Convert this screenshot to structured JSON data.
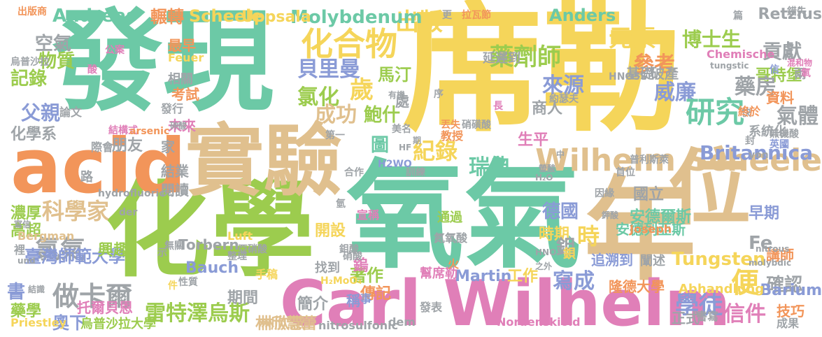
{
  "words": [
    {
      "text": "席勒",
      "color": "#f5d55a"
    },
    {
      "text": "氧氣",
      "color": "#6cc9a6"
    },
    {
      "text": "發現",
      "color": "#6cc9a6"
    },
    {
      "text": "化學",
      "color": "#9ccc4e"
    },
    {
      "text": "年",
      "color": "#e0c08e"
    },
    {
      "text": "實驗",
      "color": "#e0c08e"
    },
    {
      "text": "acid",
      "color": "#f2955a"
    },
    {
      "text": "Carl Wilhelm",
      "color": "#e07fb8"
    },
    {
      "text": "位",
      "color": "#e0c08e"
    },
    {
      "text": "Wilhelm Scheele",
      "color": "#e0c08e"
    },
    {
      "text": "化合物",
      "color": "#f5d55a"
    },
    {
      "text": "藥劑師",
      "color": "#9ccc4e"
    },
    {
      "text": "出版",
      "color": "#f5d55a"
    },
    {
      "text": "元素",
      "color": "#f5d55a"
    },
    {
      "text": "博士生",
      "color": "#9ccc4e"
    },
    {
      "text": "貢獻",
      "color": "#9fa4a8"
    },
    {
      "text": "空氣",
      "color": "#9fa4a8"
    },
    {
      "text": "物質",
      "color": "#9ccc4e"
    },
    {
      "text": "記錄",
      "color": "#9ccc4e"
    },
    {
      "text": "父親",
      "color": "#8a9bd6"
    },
    {
      "text": "化學系",
      "color": "#9fa4a8"
    },
    {
      "text": "貝里曼",
      "color": "#8a9bd6"
    },
    {
      "text": "馬汀",
      "color": "#9ccc4e"
    },
    {
      "text": "參考",
      "color": "#f2955a"
    },
    {
      "text": "哥特堡",
      "color": "#9ccc4e"
    },
    {
      "text": "氯化",
      "color": "#9ccc4e"
    },
    {
      "text": "歲",
      "color": "#f5d55a"
    },
    {
      "text": "威廉",
      "color": "#8a9bd6"
    },
    {
      "text": "藥房",
      "color": "#9fa4a8"
    },
    {
      "text": "成功",
      "color": "#e0c08e"
    },
    {
      "text": "鮑什",
      "color": "#9ccc4e"
    },
    {
      "text": "研究",
      "color": "#6cc9a6"
    },
    {
      "text": "氣體",
      "color": "#9fa4a8"
    },
    {
      "text": "來源",
      "color": "#8a9bd6"
    },
    {
      "text": "商人",
      "color": "#9fa4a8"
    },
    {
      "text": "Britannica",
      "color": "#8a9bd6"
    },
    {
      "text": "科學家",
      "color": "#e0c08e"
    },
    {
      "text": "朋友",
      "color": "#9fa4a8"
    },
    {
      "text": "瑞典",
      "color": "#6cc9a6"
    },
    {
      "text": "紀錄",
      "color": "#f5d55a"
    },
    {
      "text": "圖",
      "color": "#6cc9a6"
    },
    {
      "text": "德國",
      "color": "#8a9bd6"
    },
    {
      "text": "氯氣",
      "color": "#9fa4a8"
    },
    {
      "text": "做卡爾",
      "color": "#9fa4a8"
    },
    {
      "text": "雷特澤烏斯",
      "color": "#9ccc4e"
    },
    {
      "text": "臺灣師範大學",
      "color": "#8a9bd6"
    },
    {
      "text": "書",
      "color": "#8a9bd6"
    },
    {
      "text": "時",
      "color": "#f5d55a"
    },
    {
      "text": "便",
      "color": "#f5d55a"
    },
    {
      "text": "Fe",
      "color": "#9fa4a8"
    },
    {
      "text": "學徒",
      "color": "#8a9bd6"
    },
    {
      "text": "信件",
      "color": "#e07fb8"
    },
    {
      "text": "寫成",
      "color": "#8a9bd6"
    },
    {
      "text": "確認",
      "color": "#9fa4a8"
    },
    {
      "text": "Tungsten",
      "color": "#f5d55a"
    },
    {
      "text": "Barium",
      "color": "#8a9bd6"
    },
    {
      "text": "Molybdenum",
      "color": "#6cc9a6"
    },
    {
      "text": "Scheele",
      "color": "#f5d55a"
    },
    {
      "text": "Andreas",
      "color": "#6cc9a6"
    },
    {
      "text": "Anders",
      "color": "#6cc9a6"
    },
    {
      "text": "Retzius",
      "color": "#9fa4a8"
    },
    {
      "text": "Uppsala",
      "color": "#f5d55a"
    },
    {
      "text": "輾轉",
      "color": "#f2955a"
    },
    {
      "text": "著作",
      "color": "#9ccc4e"
    },
    {
      "text": "生平",
      "color": "#e07fb8"
    },
    {
      "text": "安德爾斯",
      "color": "#6cc9a6"
    },
    {
      "text": "安德列亞斯",
      "color": "#6cc9a6"
    },
    {
      "text": "國立",
      "color": "#9fa4a8"
    },
    {
      "text": "早期",
      "color": "#8a9bd6"
    },
    {
      "text": "時期",
      "color": "#f5d55a"
    },
    {
      "text": "鉬",
      "color": "#9fa4a8"
    },
    {
      "text": "傳記",
      "color": "#f2955a"
    },
    {
      "text": "林欣慧",
      "color": "#e0c08e"
    },
    {
      "text": "林欣慧蕾",
      "color": "#e0c08e"
    },
    {
      "text": "簡介",
      "color": "#9fa4a8"
    },
    {
      "text": "期間",
      "color": "#9fa4a8"
    },
    {
      "text": "Martin",
      "color": "#8a9bd6"
    },
    {
      "text": "工作",
      "color": "#f5d55a"
    },
    {
      "text": "隆德大學",
      "color": "#f2955a"
    },
    {
      "text": "技巧",
      "color": "#f2955a"
    },
    {
      "text": "正式",
      "color": "#9fa4a8"
    },
    {
      "text": "Bauch",
      "color": "#8a9bd6"
    },
    {
      "text": "興趣",
      "color": "#9ccc4e"
    },
    {
      "text": "高超",
      "color": "#9ccc4e"
    },
    {
      "text": "濃厚",
      "color": "#9ccc4e"
    },
    {
      "text": "閱讀",
      "color": "#9fa4a8"
    },
    {
      "text": "結業",
      "color": "#9fa4a8"
    },
    {
      "text": "藥學",
      "color": "#9ccc4e"
    },
    {
      "text": "奧下",
      "color": "#8a9bd6"
    },
    {
      "text": "烏普沙拉大學",
      "color": "#9ccc4e"
    },
    {
      "text": "托爾貝恩",
      "color": "#e07fb8"
    },
    {
      "text": "Torbern",
      "color": "#9fa4a8"
    },
    {
      "text": "Bergman",
      "color": "#e0c08e"
    },
    {
      "text": "開設",
      "color": "#f5d55a"
    },
    {
      "text": "鎢",
      "color": "#e07fb8"
    },
    {
      "text": "講師",
      "color": "#f2955a"
    },
    {
      "text": "破產",
      "color": "#9fa4a8"
    },
    {
      "text": "基礎",
      "color": "#9fa4a8"
    },
    {
      "text": "資料",
      "color": "#f2955a"
    },
    {
      "text": "系統化",
      "color": "#9fa4a8"
    },
    {
      "text": "兩",
      "color": "#9fa4a8"
    },
    {
      "text": "家",
      "color": "#9fa4a8"
    },
    {
      "text": "未來",
      "color": "#e07fb8"
    },
    {
      "text": "考試",
      "color": "#f2955a"
    },
    {
      "text": "相關",
      "color": "#9fa4a8"
    },
    {
      "text": "最早",
      "color": "#f2955a"
    },
    {
      "text": "處",
      "color": "#9fa4a8"
    },
    {
      "text": "延遲到",
      "color": "#9fa4a8"
    },
    {
      "text": "Chemische",
      "color": "#e07fb8"
    },
    {
      "text": "Feuer",
      "color": "#f5d55a"
    },
    {
      "text": "Luft",
      "color": "#f5d55a"
    },
    {
      "text": "Abhandlung",
      "color": "#f5d55a"
    },
    {
      "text": "Joseph",
      "color": "#f2955a"
    },
    {
      "text": "Priestley",
      "color": "#f5d55a"
    },
    {
      "text": "Nordenskiold",
      "color": "#e07fb8"
    },
    {
      "text": "nitrosulfonic",
      "color": "#9fa4a8"
    },
    {
      "text": "dem",
      "color": "#9fa4a8"
    },
    {
      "text": "稱",
      "color": "#8a9bd6"
    },
    {
      "text": "事",
      "color": "#8a9bd6"
    },
    {
      "text": "找到",
      "color": "#9fa4a8"
    },
    {
      "text": "手稿",
      "color": "#f5d55a"
    },
    {
      "text": "幫席勒",
      "color": "#e07fb8"
    },
    {
      "text": "追溯到",
      "color": "#8a9bd6"
    },
    {
      "text": "闡述",
      "color": "#9fa4a8"
    },
    {
      "text": "發表",
      "color": "#9fa4a8"
    },
    {
      "text": "書寫",
      "color": "#9fa4a8"
    },
    {
      "text": "成果",
      "color": "#9fa4a8"
    },
    {
      "text": "路",
      "color": "#9fa4a8"
    },
    {
      "text": "際會",
      "color": "#9fa4a8"
    },
    {
      "text": "結構式",
      "color": "#e07fb8"
    },
    {
      "text": "論文",
      "color": "#9fa4a8"
    },
    {
      "text": "發行",
      "color": "#9fa4a8"
    },
    {
      "text": "公案",
      "color": "#e07fb8"
    },
    {
      "text": "出版商",
      "color": "#f2955a"
    },
    {
      "text": "更",
      "color": "#9fa4a8"
    },
    {
      "text": "拉瓦節",
      "color": "#f2955a"
    },
    {
      "text": "錯失",
      "color": "#9fa4a8"
    },
    {
      "text": "篇",
      "color": "#9fa4a8"
    },
    {
      "text": "tungstic",
      "color": "#9fa4a8"
    },
    {
      "text": "HNO5S",
      "color": "#9fa4a8"
    },
    {
      "text": "混和物",
      "color": "#e07fb8"
    },
    {
      "text": "氧",
      "color": "#e07fb8"
    },
    {
      "text": "信",
      "color": "#8a9bd6"
    },
    {
      "text": "快",
      "color": "#9fa4a8"
    },
    {
      "text": "封",
      "color": "#9fa4a8"
    },
    {
      "text": "終於",
      "color": "#f2955a"
    },
    {
      "text": "無機酸",
      "color": "#9fa4a8"
    },
    {
      "text": "英國",
      "color": "#8a9bd6"
    },
    {
      "text": "約瑟夫",
      "color": "#9fa4a8"
    },
    {
      "text": "首位",
      "color": "#9fa4a8"
    },
    {
      "text": "普利斯萊",
      "color": "#9fa4a8"
    },
    {
      "text": "von",
      "color": "#9fa4a8"
    },
    {
      "text": "因緣",
      "color": "#9fa4a8"
    },
    {
      "text": "鉀酸",
      "color": "#9fa4a8"
    },
    {
      "text": "molybdic",
      "color": "#9fa4a8"
    },
    {
      "text": "nitrous",
      "color": "#9fa4a8"
    },
    {
      "text": "HNO",
      "color": "#9fa4a8"
    },
    {
      "text": "之外",
      "color": "#9fa4a8"
    },
    {
      "text": "氮氧酸",
      "color": "#9fa4a8"
    },
    {
      "text": "鋇",
      "color": "#f5d55a"
    },
    {
      "text": "火",
      "color": "#f2955a"
    },
    {
      "text": "宣稱",
      "color": "#e07fb8"
    },
    {
      "text": "通過",
      "color": "#9ccc4e"
    },
    {
      "text": "H₂MoO₄",
      "color": "#f5d55a"
    },
    {
      "text": "鉬酸",
      "color": "#9fa4a8"
    },
    {
      "text": "硝酸",
      "color": "#9fa4a8"
    },
    {
      "text": "亞硝酸",
      "color": "#9fa4a8"
    },
    {
      "text": "氫",
      "color": "#9fa4a8"
    },
    {
      "text": "整理",
      "color": "#9fa4a8"
    },
    {
      "text": "無關",
      "color": "#9fa4a8"
    },
    {
      "text": "示",
      "color": "#9fa4a8"
    },
    {
      "text": "性質",
      "color": "#9fa4a8"
    },
    {
      "text": "件",
      "color": "#f5d55a"
    },
    {
      "text": "hydrofluoric",
      "color": "#9fa4a8"
    },
    {
      "text": "der",
      "color": "#9fa4a8"
    },
    {
      "text": "寫信",
      "color": "#9fa4a8"
    },
    {
      "text": "und",
      "color": "#9fa4a8"
    },
    {
      "text": "結識",
      "color": "#9fa4a8"
    },
    {
      "text": "裡",
      "color": "#9fa4a8"
    },
    {
      "text": "合作",
      "color": "#9fa4a8"
    },
    {
      "text": "訓練",
      "color": "#9fa4a8"
    },
    {
      "text": "H2WO",
      "color": "#8a9bd6"
    },
    {
      "text": "HF",
      "color": "#9fa4a8"
    },
    {
      "text": "H₂O",
      "color": "#9fa4a8"
    },
    {
      "text": "螢酸",
      "color": "#9fa4a8"
    },
    {
      "text": "中",
      "color": "#9fa4a8"
    },
    {
      "text": "期",
      "color": "#9fa4a8"
    },
    {
      "text": "教授",
      "color": "#f2955a"
    },
    {
      "text": "美名",
      "color": "#9fa4a8"
    },
    {
      "text": "第一",
      "color": "#9fa4a8"
    },
    {
      "text": "arsenic",
      "color": "#f2955a"
    },
    {
      "text": "砷酸",
      "color": "#9fa4a8"
    },
    {
      "text": "有機",
      "color": "#9fa4a8"
    },
    {
      "text": "丟失",
      "color": "#f2955a"
    },
    {
      "text": "硝磺酸",
      "color": "#9fa4a8"
    },
    {
      "text": "長",
      "color": "#e07fb8"
    },
    {
      "text": "序",
      "color": "#9fa4a8"
    },
    {
      "text": "烏普沙拉",
      "color": "#9fa4a8"
    },
    {
      "text": "酸",
      "color": "#e07fb8"
    }
  ]
}
